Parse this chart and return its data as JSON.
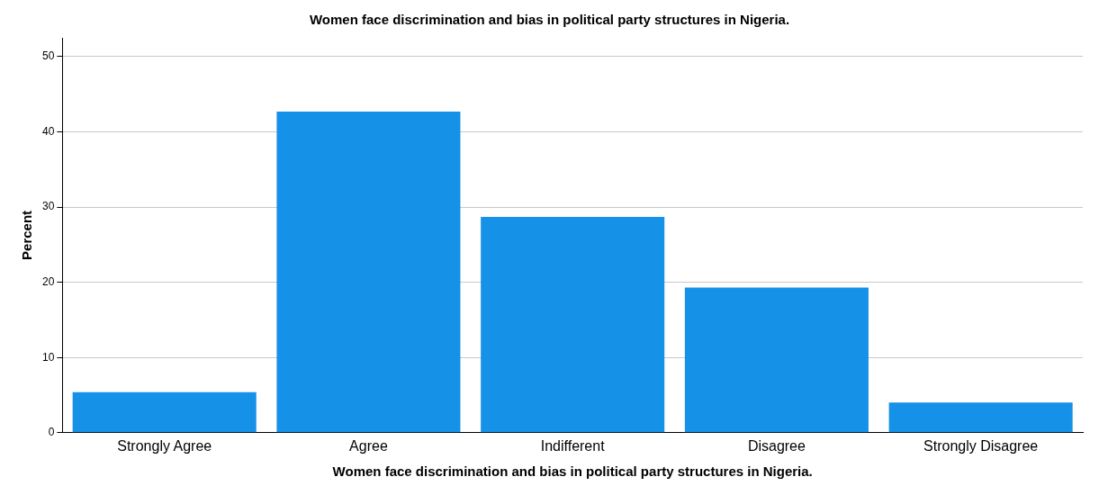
{
  "chart_data": {
    "type": "bar",
    "title": "Women face discrimination and bias in political party structures in Nigeria.",
    "xlabel": "Women face discrimination and bias in political party structures in Nigeria.",
    "ylabel": "Percent",
    "categories": [
      "Strongly Agree",
      "Agree",
      "Indifferent",
      "Disagree",
      "Strongly Disagree"
    ],
    "values": [
      5.4,
      42.7,
      28.7,
      19.3,
      4.0
    ],
    "color": "#1591e8",
    "ylim": [
      0,
      52.5
    ],
    "yticks": [
      0,
      10,
      20,
      30,
      40,
      50
    ],
    "grid": "y",
    "legend": false
  }
}
